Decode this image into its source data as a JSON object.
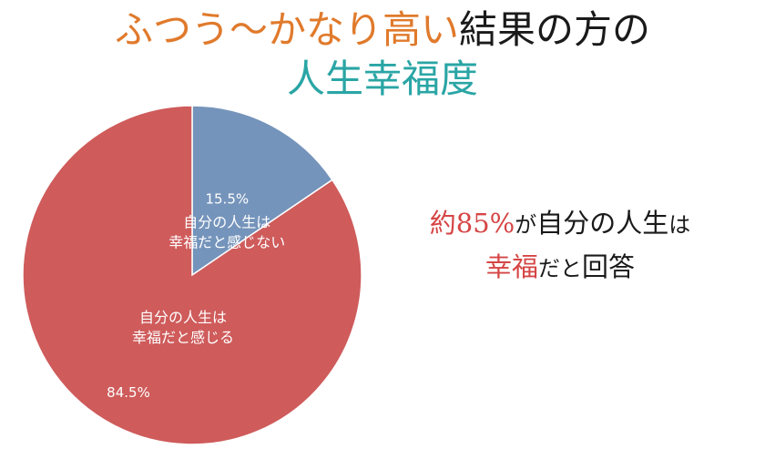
{
  "title": {
    "line1_highlight": "ふつう〜かなり高い",
    "line1_rest": "結果の方の",
    "line2": "人生幸福度",
    "colors": {
      "highlight": "#e07a2c",
      "line2": "#2aa5a5",
      "text": "#1a1a1a"
    }
  },
  "chart_data": {
    "type": "pie",
    "start_angle_deg": 0,
    "direction": "clockwise",
    "slices": [
      {
        "value": 15.5,
        "value_label": "15.5%",
        "label_lines": [
          "自分の人生は",
          "幸福だと感じない"
        ],
        "color": "#7594bb"
      },
      {
        "value": 84.5,
        "value_label": "84.5%",
        "label_lines": [
          "自分の人生は",
          "幸福だと感じる"
        ],
        "color": "#cf5b5b"
      }
    ]
  },
  "note": {
    "part1_red": "約85%",
    "part2_small": "が",
    "part3": "自分の人生",
    "part4_small": "は",
    "part5_red": "幸福",
    "part6_small": "だと",
    "part7": "回答",
    "colors": {
      "red": "#d64545"
    }
  }
}
